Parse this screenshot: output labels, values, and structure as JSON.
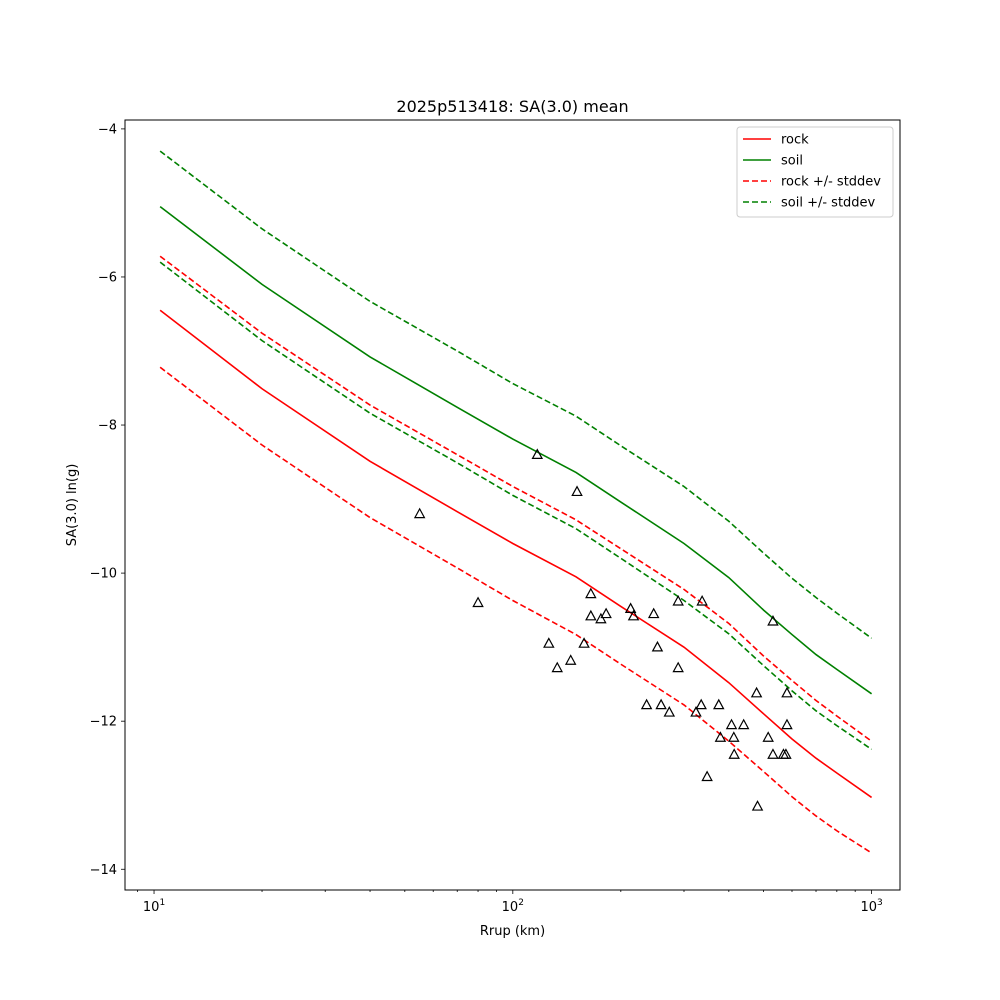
{
  "chart_data": {
    "type": "line",
    "title": "2025p513418: SA(3.0) mean",
    "xlabel": "Rrup (km)",
    "ylabel": "SA(3.0) ln(g)",
    "xscale": "log",
    "xlim": [
      8.3,
      1200
    ],
    "ylim": [
      -14.28,
      -3.88
    ],
    "xticks": [
      {
        "value": 10,
        "base": "10",
        "exp": "1"
      },
      {
        "value": 100,
        "base": "10",
        "exp": "2"
      },
      {
        "value": 1000,
        "base": "10",
        "exp": "3"
      }
    ],
    "yticks": [
      {
        "value": -4,
        "label": "−4"
      },
      {
        "value": -6,
        "label": "−6"
      },
      {
        "value": -8,
        "label": "−8"
      },
      {
        "value": -10,
        "label": "−10"
      },
      {
        "value": -12,
        "label": "−12"
      },
      {
        "value": -14,
        "label": "−14"
      }
    ],
    "legend_position": "top-right",
    "x": [
      10.4,
      20,
      40,
      70,
      100,
      150,
      200,
      300,
      400,
      500,
      600,
      700,
      800,
      1000
    ],
    "series": [
      {
        "name": "rock",
        "style": "solid",
        "color": "#ff0000",
        "values": [
          -6.45,
          -7.51,
          -8.49,
          -9.17,
          -9.6,
          -10.05,
          -10.45,
          -11.0,
          -11.48,
          -11.9,
          -12.24,
          -12.5,
          -12.7,
          -13.03
        ]
      },
      {
        "name": "soil",
        "style": "solid",
        "color": "#008000",
        "values": [
          -5.05,
          -6.1,
          -7.08,
          -7.76,
          -8.19,
          -8.64,
          -9.04,
          -9.6,
          -10.06,
          -10.5,
          -10.83,
          -11.1,
          -11.3,
          -11.63
        ]
      },
      {
        "name": "rock +/- stddev",
        "style": "dashed",
        "color": "#ff0000",
        "values": [
          -5.72,
          -6.76,
          -7.73,
          -8.4,
          -8.83,
          -9.28,
          -9.67,
          -10.22,
          -10.68,
          -11.12,
          -11.45,
          -11.72,
          -11.93,
          -12.27
        ]
      },
      {
        "name": "",
        "style": "dashed",
        "color": "#ff0000",
        "values": [
          -7.22,
          -8.27,
          -9.25,
          -9.93,
          -10.37,
          -10.83,
          -11.23,
          -11.78,
          -12.27,
          -12.68,
          -13.02,
          -13.28,
          -13.48,
          -13.78
        ]
      },
      {
        "name": "soil +/- stddev",
        "style": "dashed",
        "color": "#008000",
        "values": [
          -4.3,
          -5.35,
          -6.33,
          -7.0,
          -7.44,
          -7.88,
          -8.28,
          -8.83,
          -9.3,
          -9.73,
          -10.07,
          -10.33,
          -10.54,
          -10.88
        ]
      },
      {
        "name": "",
        "style": "dashed",
        "color": "#008000",
        "values": [
          -5.8,
          -6.86,
          -7.84,
          -8.51,
          -8.95,
          -9.4,
          -9.8,
          -10.37,
          -10.82,
          -11.25,
          -11.59,
          -11.86,
          -12.06,
          -12.38
        ]
      }
    ],
    "observations": {
      "marker": "triangle",
      "color": "#000000",
      "points": [
        [
          55,
          -9.2
        ],
        [
          80,
          -10.4
        ],
        [
          117,
          -8.4
        ],
        [
          126,
          -10.95
        ],
        [
          133,
          -11.28
        ],
        [
          145,
          -11.18
        ],
        [
          151,
          -8.9
        ],
        [
          158,
          -10.95
        ],
        [
          165,
          -10.28
        ],
        [
          165,
          -10.58
        ],
        [
          176,
          -10.62
        ],
        [
          182,
          -10.55
        ],
        [
          213,
          -10.48
        ],
        [
          217,
          -10.58
        ],
        [
          236,
          -11.78
        ],
        [
          247,
          -10.55
        ],
        [
          253,
          -11.0
        ],
        [
          259,
          -11.78
        ],
        [
          273,
          -11.88
        ],
        [
          289,
          -10.38
        ],
        [
          289,
          -11.28
        ],
        [
          324,
          -11.88
        ],
        [
          335,
          -11.78
        ],
        [
          337,
          -10.38
        ],
        [
          348,
          -12.75
        ],
        [
          375,
          -11.78
        ],
        [
          379,
          -12.22
        ],
        [
          407,
          -12.05
        ],
        [
          413,
          -12.22
        ],
        [
          414,
          -12.45
        ],
        [
          440,
          -12.05
        ],
        [
          478,
          -11.62
        ],
        [
          481,
          -13.15
        ],
        [
          515,
          -12.22
        ],
        [
          531,
          -12.45
        ],
        [
          531,
          -10.65
        ],
        [
          568,
          -12.45
        ],
        [
          577,
          -12.45
        ],
        [
          581,
          -12.05
        ],
        [
          581,
          -11.62
        ]
      ]
    }
  }
}
